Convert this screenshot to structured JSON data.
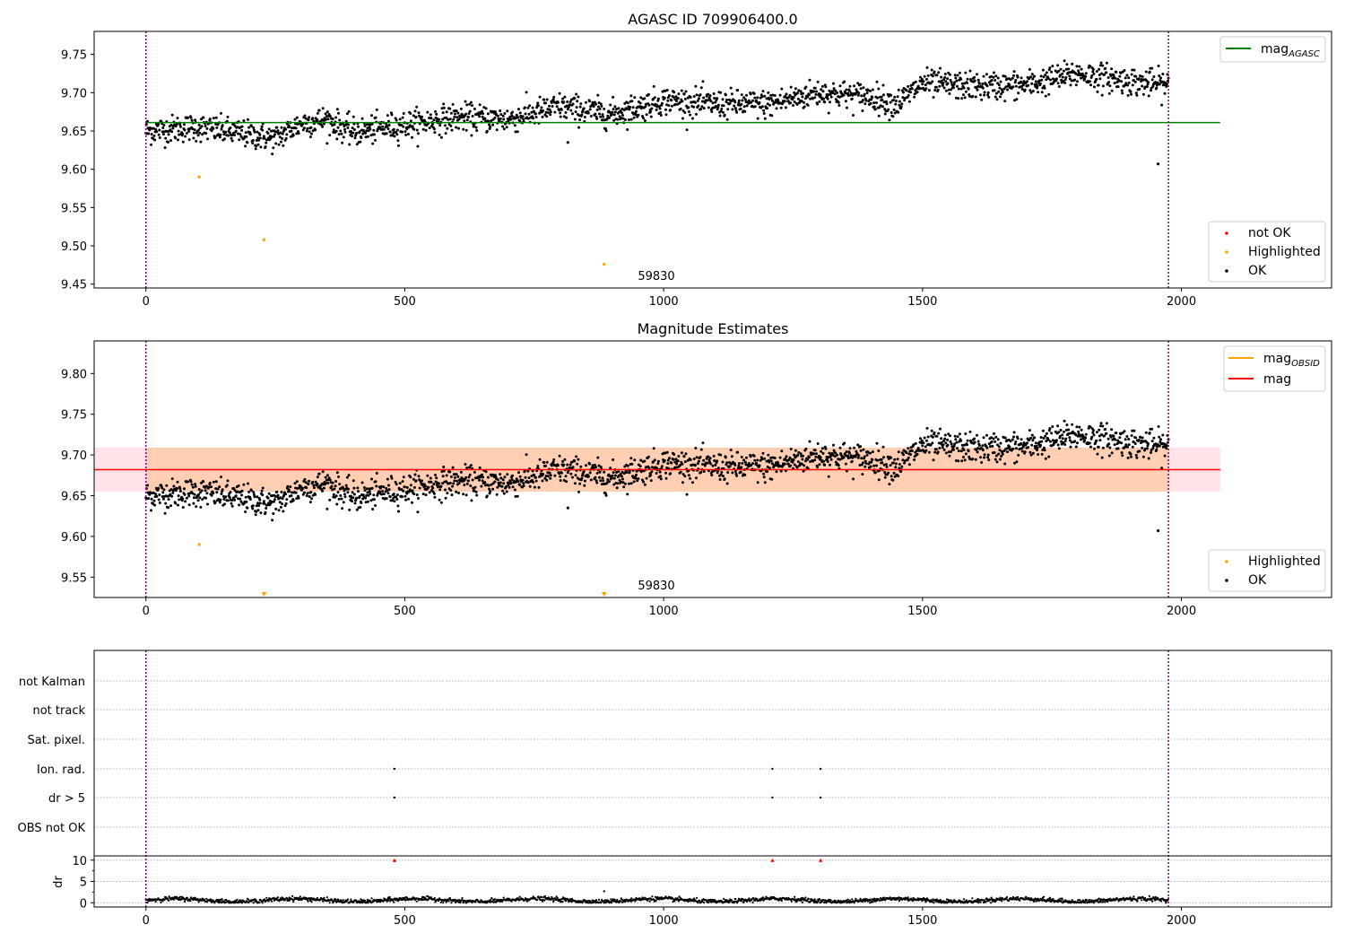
{
  "panel1": {
    "title": "AGASC ID 709906400.0",
    "annotation": "59830",
    "xticks": [
      0,
      500,
      1000,
      1500,
      2000
    ],
    "yticks": [
      9.45,
      9.5,
      9.55,
      9.6,
      9.65,
      9.7,
      9.75
    ],
    "legend_top": {
      "label": "mag",
      "sub": "AGASC",
      "color": "#008000"
    },
    "legend_bottom": [
      {
        "label": "not OK",
        "color": "#ff0000"
      },
      {
        "label": "Highlighted",
        "color": "#ffa500"
      },
      {
        "label": "OK",
        "color": "#000000"
      }
    ]
  },
  "panel2": {
    "title": "Magnitude Estimates",
    "annotation": "59830",
    "xticks": [
      0,
      500,
      1000,
      1500,
      2000
    ],
    "yticks": [
      9.55,
      9.6,
      9.65,
      9.7,
      9.75,
      9.8
    ],
    "legend_top": [
      {
        "label": "mag",
        "sub": "OBSID",
        "color": "#ffa500"
      },
      {
        "label": "mag",
        "sub": "",
        "color": "#ff0000"
      }
    ],
    "legend_bottom": [
      {
        "label": "Highlighted",
        "color": "#ffa500"
      },
      {
        "label": "OK",
        "color": "#000000"
      }
    ]
  },
  "panel3": {
    "flag_labels": [
      "not Kalman",
      "not track",
      "Sat. pixel.",
      "Ion. rad.",
      "dr > 5",
      "OBS not OK"
    ],
    "dr_label": "dr",
    "dr_yticks": [
      0,
      5,
      10
    ],
    "xticks": [
      0,
      500,
      1000,
      1500,
      2000
    ]
  },
  "chart_data": [
    {
      "type": "scatter",
      "title": "AGASC ID 709906400.0",
      "xlim": [
        -100,
        2290
      ],
      "ylim": [
        9.445,
        9.78
      ],
      "vlines": [
        0,
        1975
      ],
      "hline": {
        "name": "mag_AGASC",
        "y": 9.661,
        "x_range": [
          0,
          2075
        ]
      },
      "ok_trend": [
        [
          0,
          9.65
        ],
        [
          100,
          9.655
        ],
        [
          200,
          9.645
        ],
        [
          250,
          9.64
        ],
        [
          300,
          9.66
        ],
        [
          350,
          9.665
        ],
        [
          400,
          9.648
        ],
        [
          500,
          9.658
        ],
        [
          600,
          9.668
        ],
        [
          700,
          9.665
        ],
        [
          800,
          9.682
        ],
        [
          900,
          9.672
        ],
        [
          1000,
          9.69
        ],
        [
          1100,
          9.685
        ],
        [
          1200,
          9.685
        ],
        [
          1300,
          9.7
        ],
        [
          1400,
          9.695
        ],
        [
          1450,
          9.685
        ],
        [
          1500,
          9.712
        ],
        [
          1600,
          9.708
        ],
        [
          1700,
          9.71
        ],
        [
          1800,
          9.725
        ],
        [
          1900,
          9.715
        ],
        [
          1975,
          9.71
        ]
      ],
      "highlighted": [
        {
          "x": 103,
          "y": 9.59
        },
        {
          "x": 228,
          "y": 9.508
        },
        {
          "x": 885,
          "y": 9.476
        }
      ],
      "outliers_ok": [
        {
          "x": 1955,
          "y": 9.607
        },
        {
          "x": 815,
          "y": 9.635
        }
      ],
      "annotation": {
        "text": "59830",
        "x": 950,
        "y": 9.455
      }
    },
    {
      "type": "scatter",
      "title": "Magnitude Estimates",
      "xlim": [
        -100,
        2290
      ],
      "ylim": [
        9.525,
        9.84
      ],
      "vlines": [
        0,
        1975
      ],
      "hline": {
        "name": "mag",
        "y": 9.682,
        "x_range": [
          -100,
          2075
        ]
      },
      "band": {
        "y0": 9.655,
        "y1": 9.709,
        "x_range": [
          -100,
          2075
        ]
      },
      "highlighted": [
        {
          "x": 103,
          "y": 9.59
        }
      ],
      "highlighted_clipped": [
        {
          "x": 228
        },
        {
          "x": 885
        }
      ],
      "annotation": {
        "text": "59830",
        "x": 950,
        "y": 9.535
      }
    },
    {
      "type": "scatter",
      "title": "",
      "xlim": [
        -100,
        2290
      ],
      "flag_categories": [
        "not Kalman",
        "not track",
        "Sat. pixel.",
        "Ion. rad.",
        "dr > 5",
        "OBS not OK"
      ],
      "flag_points": [
        {
          "category": "Ion. rad.",
          "x": [
            480,
            1210,
            1303
          ]
        },
        {
          "category": "dr > 5",
          "x": [
            480,
            1210,
            1303
          ]
        }
      ],
      "dr_ylim": [
        -1,
        11
      ],
      "dr_clipped_markers": [
        480,
        1210,
        1303
      ],
      "dr_outlier": {
        "x": 885,
        "y": 2.7
      },
      "dr_baseline_mean": 0.6
    }
  ]
}
